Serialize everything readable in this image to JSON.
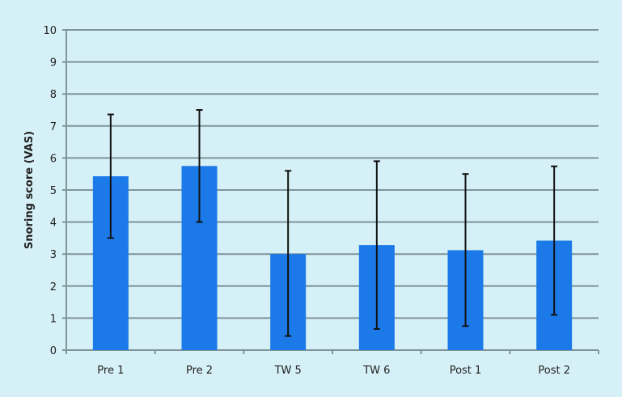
{
  "chart_data": {
    "type": "bar",
    "title": "",
    "xlabel": "",
    "ylabel": "Snoring score (VAS)",
    "ylim": [
      0,
      10
    ],
    "yticks": [
      0,
      1,
      2,
      3,
      4,
      5,
      6,
      7,
      8,
      9,
      10
    ],
    "grid": true,
    "categories": [
      "Pre 1",
      "Pre 2",
      "TW 5",
      "TW 6",
      "Post 1",
      "Post 2"
    ],
    "values": [
      5.43,
      5.75,
      3.0,
      3.28,
      3.12,
      3.42
    ],
    "error_low": [
      3.5,
      4.0,
      0.44,
      0.66,
      0.75,
      1.1
    ],
    "error_high": [
      7.36,
      7.5,
      5.6,
      5.9,
      5.5,
      5.74
    ],
    "colors": {
      "bar": "#1b7ae8",
      "background": "#d6f0f7",
      "grid": "#7f9499",
      "error": "#111111"
    }
  }
}
